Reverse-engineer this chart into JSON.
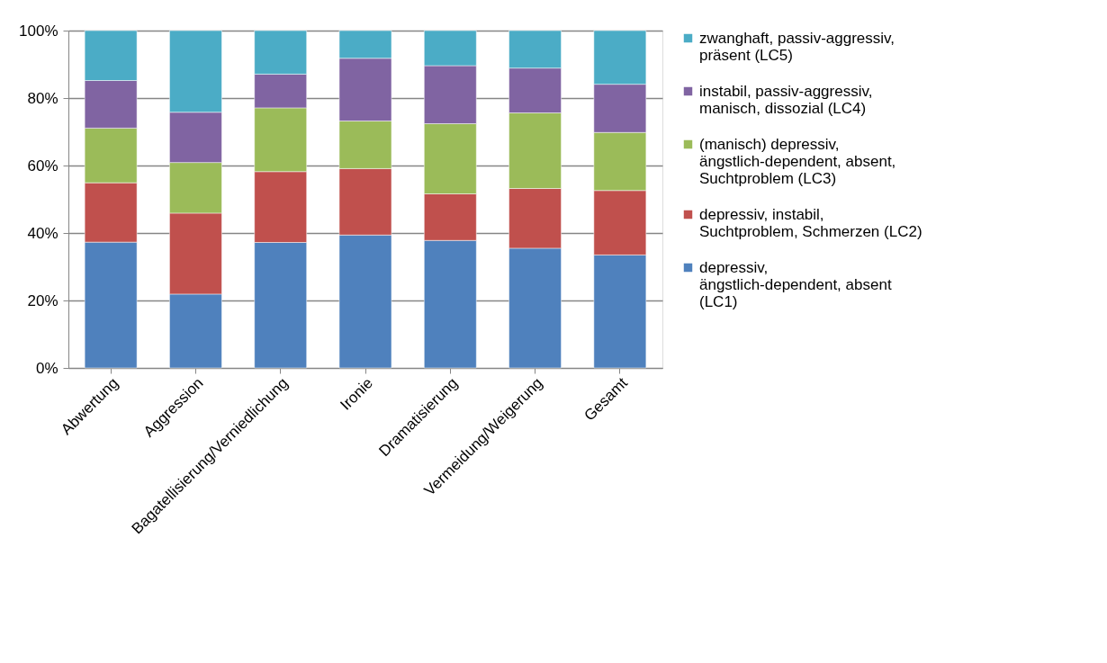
{
  "chart_data": {
    "type": "bar",
    "stacked": true,
    "categories": [
      "Abwertung",
      "Aggression",
      "Bagatellisierung/Verniedlichung",
      "Ironie",
      "Dramatisierung",
      "Vermeidung/Weigerung",
      "Gesamt"
    ],
    "series": [
      {
        "name": "depressiv, ängstlich-dependent, absent (LC1)",
        "color": "#4f81bd",
        "values": [
          37.3,
          21.9,
          37.2,
          39.4,
          37.8,
          35.5,
          33.5
        ]
      },
      {
        "name": "depressiv, instabil, Suchtproblem, Schmerzen (LC2)",
        "color": "#c0504d",
        "values": [
          17.6,
          24.0,
          21.0,
          19.7,
          13.8,
          17.7,
          19.1
        ]
      },
      {
        "name": "(manisch) depressiv, ängstlich-dependent, absent, Suchtproblem (LC3)",
        "color": "#9bbb59",
        "values": [
          16.2,
          15.0,
          18.9,
          14.1,
          20.8,
          22.4,
          17.2
        ]
      },
      {
        "name": "instabil, passiv-aggressiv, manisch, dissozial (LC4)",
        "color": "#8064a2",
        "values": [
          14.1,
          14.9,
          10.0,
          18.6,
          17.2,
          13.3,
          14.3
        ]
      },
      {
        "name": "zwanghaft,  passiv-aggressiv, präsent (LC5)",
        "color": "#4bacc6",
        "values": [
          14.8,
          24.2,
          12.9,
          8.2,
          10.4,
          11.1,
          15.9
        ]
      }
    ],
    "ylim": [
      0,
      100
    ],
    "yticks": [
      {
        "value": 0,
        "label": "0%"
      },
      {
        "value": 20,
        "label": "20%"
      },
      {
        "value": 40,
        "label": "40%"
      },
      {
        "value": 60,
        "label": "60%"
      },
      {
        "value": 80,
        "label": "80%"
      },
      {
        "value": 100,
        "label": "100%"
      }
    ],
    "grid": "y",
    "legend": "right"
  }
}
